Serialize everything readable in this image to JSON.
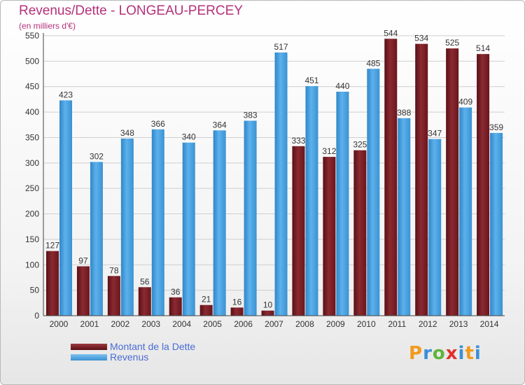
{
  "chart_data": {
    "type": "bar",
    "title": "Revenus/Dette - LONGEAU-PERCEY",
    "subtitle": "(en milliers d'€)",
    "categories": [
      "2000",
      "2001",
      "2002",
      "2003",
      "2004",
      "2005",
      "2006",
      "2007",
      "2008",
      "2009",
      "2010",
      "2011",
      "2012",
      "2013",
      "2014"
    ],
    "series": [
      {
        "name": "Montant de la Dette",
        "color": "#7a1f26",
        "values": [
          127,
          97,
          78,
          56,
          36,
          21,
          16,
          10,
          333,
          312,
          325,
          544,
          534,
          525,
          514
        ]
      },
      {
        "name": "Revenus",
        "color": "#4fa3e0",
        "values": [
          423,
          302,
          348,
          366,
          340,
          364,
          383,
          517,
          451,
          440,
          485,
          388,
          347,
          409,
          359
        ]
      }
    ],
    "ylim": [
      0,
      550
    ],
    "yticks": [
      0,
      50,
      100,
      150,
      200,
      250,
      300,
      350,
      400,
      450,
      500,
      550
    ],
    "grid": true,
    "legend": "bottom-left"
  },
  "legend": {
    "debt_label": "Montant de la Dette",
    "revenue_label": "Revenus"
  },
  "brand": {
    "p": "P",
    "r": "r",
    "o": "o",
    "x": "x",
    "i": "i",
    "t": "t",
    "i2": "i"
  }
}
